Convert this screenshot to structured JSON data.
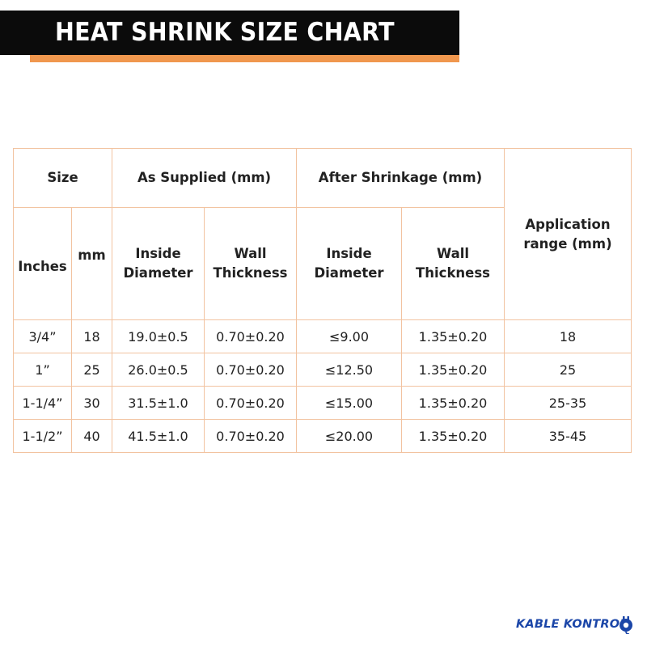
{
  "header": {
    "title": "HEAT SHRINK SIZE CHART"
  },
  "colors": {
    "banner": "#0b0b0b",
    "accent": "#f0974e",
    "border": "#f2c3a0",
    "logo": "#1b46a8"
  },
  "table": {
    "group_headers": {
      "size": "Size",
      "as_supplied": "As Supplied (mm)",
      "after_shrinkage": "After Shrinkage (mm)",
      "application": [
        "Application",
        "range (mm)"
      ]
    },
    "sub_headers": {
      "inches": "Inches",
      "mm": "mm",
      "supplied_inside": [
        "Inside",
        "Diameter"
      ],
      "supplied_wall": [
        "Wall",
        "Thickness"
      ],
      "shrunk_inside": [
        "Inside",
        "Diameter"
      ],
      "shrunk_wall": [
        "Wall",
        "Thickness"
      ]
    },
    "rows": [
      [
        "3/4”",
        "18",
        "19.0±0.5",
        "0.70±0.20",
        "≤9.00",
        "1.35±0.20",
        "18"
      ],
      [
        "1”",
        "25",
        "26.0±0.5",
        "0.70±0.20",
        "≤12.50",
        "1.35±0.20",
        "25"
      ],
      [
        "1-1/4”",
        "30",
        "31.5±1.0",
        "0.70±0.20",
        "≤15.00",
        "1.35±0.20",
        "25-35"
      ],
      [
        "1-1/2”",
        "40",
        "41.5±1.0",
        "0.70±0.20",
        "≤20.00",
        "1.35±0.20",
        "35-45"
      ]
    ]
  },
  "logo": {
    "text": "KABLE KONTROL",
    "icon": "plug-icon"
  }
}
